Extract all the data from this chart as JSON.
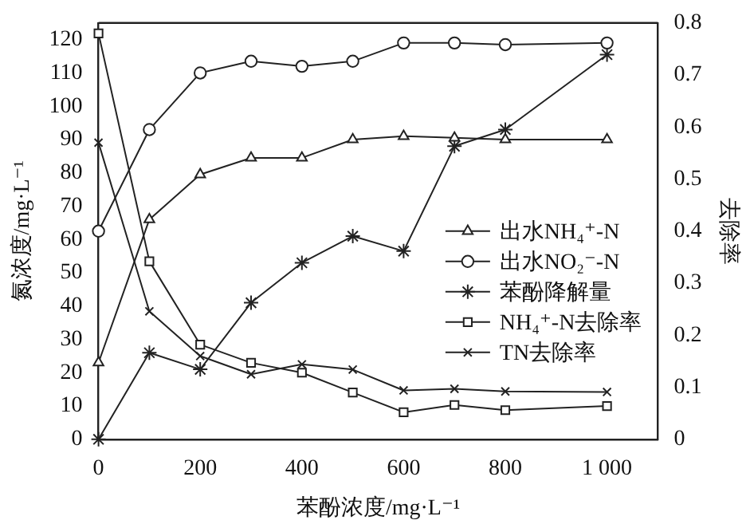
{
  "chart_data": {
    "type": "line",
    "xlabel": "苯酚浓度/mg·L⁻¹",
    "ylabel": "氮浓度/mg·L⁻¹",
    "y2label": "去除率",
    "x": [
      0,
      100,
      200,
      300,
      400,
      500,
      600,
      700,
      800,
      1000
    ],
    "xlim": [
      0,
      1100
    ],
    "xticks": [
      0,
      200,
      400,
      600,
      800,
      {
        "value": 1000,
        "label": "1 000"
      }
    ],
    "ylim": [
      0,
      125
    ],
    "yticks": [
      0,
      10,
      20,
      30,
      40,
      50,
      60,
      70,
      80,
      90,
      100,
      110,
      120
    ],
    "y2lim": [
      0,
      0.8
    ],
    "y2ticks": [
      0,
      0.1,
      0.2,
      0.3,
      0.4,
      0.5,
      0.6,
      0.7,
      0.8
    ],
    "legend": "right",
    "grid": false,
    "series": [
      {
        "name": "出水NH₄⁺-N",
        "color": "#222222",
        "marker": "triangle",
        "values": [
          23,
          66,
          79.5,
          84.5,
          84.5,
          90,
          91,
          90.5,
          90,
          90
        ]
      },
      {
        "name": "出水NO₂⁻-N",
        "color": "#222222",
        "marker": "circle",
        "values": [
          62.5,
          93,
          110,
          113.5,
          112,
          113.5,
          119,
          119,
          118.5,
          119
        ]
      },
      {
        "name": "苯酚降解量",
        "color": "#222222",
        "marker": "cross",
        "values": [
          0,
          26,
          21,
          41,
          53,
          61,
          56.5,
          88,
          93,
          115.5
        ]
      },
      {
        "name": "NH₄⁺-N去除率",
        "color": "#222222",
        "marker": "square",
        "axis": "y2",
        "values": [
          0.78,
          0.342,
          0.182,
          0.147,
          0.128,
          0.09,
          0.052,
          0.066,
          0.056,
          0.064
        ]
      },
      {
        "name": "TN去除率",
        "color": "#222222",
        "marker": "cross",
        "axis": "y2",
        "values": [
          0.57,
          0.246,
          0.16,
          0.125,
          0.144,
          0.134,
          0.094,
          0.097,
          0.092,
          0.091
        ]
      }
    ]
  }
}
